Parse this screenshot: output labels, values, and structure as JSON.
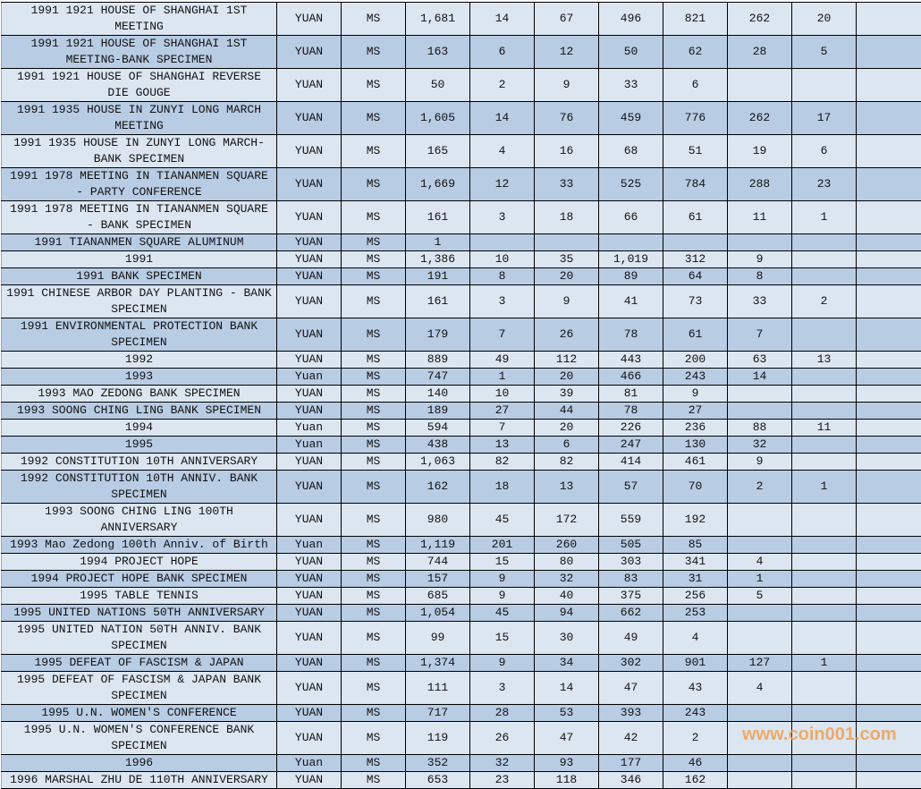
{
  "colors": {
    "row_light": "#dce6f1",
    "row_dark": "#b8cce4",
    "border": "#000000",
    "watermark": "#f0a050"
  },
  "rows": [
    [
      "1991 1921 HOUSE OF SHANGHAI 1ST MEETING",
      "YUAN",
      "MS",
      "1,681",
      "14",
      "67",
      "496",
      "821",
      "262",
      "20",
      ""
    ],
    [
      "1991 1921 HOUSE OF SHANGHAI 1ST MEETING-BANK SPECIMEN",
      "YUAN",
      "MS",
      "163",
      "6",
      "12",
      "50",
      "62",
      "28",
      "5",
      ""
    ],
    [
      "1991 1921 HOUSE OF SHANGHAI REVERSE DIE GOUGE",
      "YUAN",
      "MS",
      "50",
      "2",
      "9",
      "33",
      "6",
      "",
      "",
      ""
    ],
    [
      "1991 1935 HOUSE IN ZUNYI LONG MARCH MEETING",
      "YUAN",
      "MS",
      "1,605",
      "14",
      "76",
      "459",
      "776",
      "262",
      "17",
      ""
    ],
    [
      "1991 1935 HOUSE IN ZUNYI LONG MARCH-BANK SPECIMEN",
      "YUAN",
      "MS",
      "165",
      "4",
      "16",
      "68",
      "51",
      "19",
      "6",
      ""
    ],
    [
      "1991 1978 MEETING IN TIANANMEN SQUARE - PARTY CONFERENCE",
      "YUAN",
      "MS",
      "1,669",
      "12",
      "33",
      "525",
      "784",
      "288",
      "23",
      ""
    ],
    [
      "1991 1978 MEETING IN TIANANMEN SQUARE - BANK SPECIMEN",
      "YUAN",
      "MS",
      "161",
      "3",
      "18",
      "66",
      "61",
      "11",
      "1",
      ""
    ],
    [
      "1991 TIANANMEN SQUARE ALUMINUM",
      "YUAN",
      "MS",
      "1",
      "",
      "",
      "",
      "",
      "",
      "",
      ""
    ],
    [
      "1991",
      "YUAN",
      "MS",
      "1,386",
      "10",
      "35",
      "1,019",
      "312",
      "9",
      "",
      ""
    ],
    [
      "1991 BANK SPECIMEN",
      "YUAN",
      "MS",
      "191",
      "8",
      "20",
      "89",
      "64",
      "8",
      "",
      ""
    ],
    [
      "1991 CHINESE ARBOR DAY PLANTING - BANK SPECIMEN",
      "YUAN",
      "MS",
      "161",
      "3",
      "9",
      "41",
      "73",
      "33",
      "2",
      ""
    ],
    [
      "1991 ENVIRONMENTAL PROTECTION BANK SPECIMEN",
      "YUAN",
      "MS",
      "179",
      "7",
      "26",
      "78",
      "61",
      "7",
      "",
      ""
    ],
    [
      "1992",
      "YUAN",
      "MS",
      "889",
      "49",
      "112",
      "443",
      "200",
      "63",
      "13",
      ""
    ],
    [
      "1993",
      "Yuan",
      "MS",
      "747",
      "1",
      "20",
      "466",
      "243",
      "14",
      "",
      ""
    ],
    [
      "1993 MAO ZEDONG BANK SPECIMEN",
      "YUAN",
      "MS",
      "140",
      "10",
      "39",
      "81",
      "9",
      "",
      "",
      ""
    ],
    [
      "1993 SOONG CHING LING BANK SPECIMEN",
      "YUAN",
      "MS",
      "189",
      "27",
      "44",
      "78",
      "27",
      "",
      "",
      ""
    ],
    [
      "1994",
      "Yuan",
      "MS",
      "594",
      "7",
      "20",
      "226",
      "236",
      "88",
      "11",
      ""
    ],
    [
      "1995",
      "Yuan",
      "MS",
      "438",
      "13",
      "6",
      "247",
      "130",
      "32",
      "",
      ""
    ],
    [
      "1992 CONSTITUTION 10TH ANNIVERSARY",
      "YUAN",
      "MS",
      "1,063",
      "82",
      "82",
      "414",
      "461",
      "9",
      "",
      ""
    ],
    [
      "1992 CONSTITUTION 10TH ANNIV. BANK SPECIMEN",
      "YUAN",
      "MS",
      "162",
      "18",
      "13",
      "57",
      "70",
      "2",
      "1",
      ""
    ],
    [
      "1993 SOONG CHING LING 100TH ANNIVERSARY",
      "YUAN",
      "MS",
      "980",
      "45",
      "172",
      "559",
      "192",
      "",
      "",
      ""
    ],
    [
      "1993 Mao Zedong 100th Anniv. of Birth",
      "Yuan",
      "MS",
      "1,119",
      "201",
      "260",
      "505",
      "85",
      "",
      "",
      ""
    ],
    [
      "1994 PROJECT HOPE",
      "YUAN",
      "MS",
      "744",
      "15",
      "80",
      "303",
      "341",
      "4",
      "",
      ""
    ],
    [
      "1994 PROJECT HOPE BANK SPECIMEN",
      "YUAN",
      "MS",
      "157",
      "9",
      "32",
      "83",
      "31",
      "1",
      "",
      ""
    ],
    [
      "1995 TABLE TENNIS",
      "YUAN",
      "MS",
      "685",
      "9",
      "40",
      "375",
      "256",
      "5",
      "",
      ""
    ],
    [
      "1995 UNITED NATIONS 50TH ANNIVERSARY",
      "YUAN",
      "MS",
      "1,054",
      "45",
      "94",
      "662",
      "253",
      "",
      "",
      ""
    ],
    [
      "1995 UNITED NATION 50TH ANNIV. BANK SPECIMEN",
      "YUAN",
      "MS",
      "99",
      "15",
      "30",
      "49",
      "4",
      "",
      "",
      ""
    ],
    [
      "1995 DEFEAT OF FASCISM & JAPAN",
      "YUAN",
      "MS",
      "1,374",
      "9",
      "34",
      "302",
      "901",
      "127",
      "1",
      ""
    ],
    [
      "1995 DEFEAT OF FASCISM & JAPAN BANK SPECIMEN",
      "YUAN",
      "MS",
      "111",
      "3",
      "14",
      "47",
      "43",
      "4",
      "",
      ""
    ],
    [
      "1995 U.N. WOMEN'S CONFERENCE",
      "YUAN",
      "MS",
      "717",
      "28",
      "53",
      "393",
      "243",
      "",
      "",
      ""
    ],
    [
      "1995 U.N. WOMEN'S CONFERENCE BANK SPECIMEN",
      "YUAN",
      "MS",
      "119",
      "26",
      "47",
      "42",
      "2",
      "",
      "",
      ""
    ],
    [
      "1996",
      "Yuan",
      "MS",
      "352",
      "32",
      "93",
      "177",
      "46",
      "",
      "",
      ""
    ],
    [
      "1996 MARSHAL ZHU DE 110TH ANNIVERSARY",
      "YUAN",
      "MS",
      "653",
      "23",
      "118",
      "346",
      "162",
      "",
      "",
      ""
    ]
  ],
  "watermark": "www.coin001.com"
}
